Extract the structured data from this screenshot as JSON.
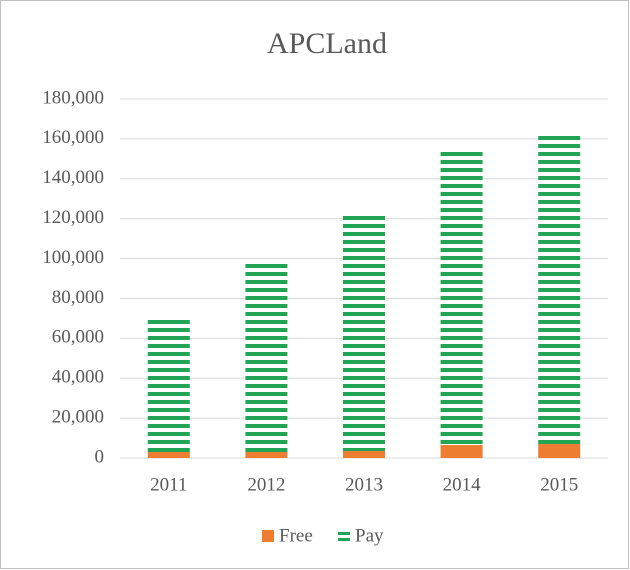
{
  "chart_data": {
    "type": "stacked_bar",
    "title": "APCLand",
    "categories": [
      "2011",
      "2012",
      "2013",
      "2014",
      "2015"
    ],
    "series": [
      {
        "name": "Free",
        "color": "#ed7d31",
        "values": [
          3000,
          3000,
          3500,
          6500,
          7000
        ]
      },
      {
        "name": "Pay",
        "color": "#21a453",
        "values": [
          68000,
          96000,
          119500,
          148500,
          156000
        ]
      }
    ],
    "ylim": [
      0,
      180000
    ],
    "yticks": [
      {
        "value": 0,
        "label": "0"
      },
      {
        "value": 20000,
        "label": "20,000"
      },
      {
        "value": 40000,
        "label": "40,000"
      },
      {
        "value": 60000,
        "label": "60,000"
      },
      {
        "value": 80000,
        "label": "80,000"
      },
      {
        "value": 100000,
        "label": "100,000"
      },
      {
        "value": 120000,
        "label": "120,000"
      },
      {
        "value": 140000,
        "label": "140,000"
      },
      {
        "value": 160000,
        "label": "160,000"
      },
      {
        "value": 180000,
        "label": "180,000"
      }
    ],
    "grid": true,
    "legend": "bottom"
  }
}
